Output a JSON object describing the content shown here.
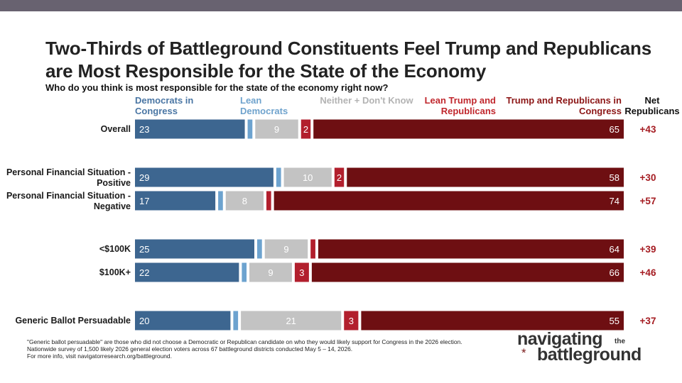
{
  "title": "Two-Thirds of Battleground Constituents Feel Trump and Republicans are Most Responsible for the State of the Economy",
  "subtitle": "Who do you think is most responsible for the state of the economy right now?",
  "colors": {
    "dem": "#3d6690",
    "lean_dem": "#6da3cf",
    "neither": "#c3c3c3",
    "lean_rep": "#b21f2d",
    "rep": "#6e0f12",
    "net": "#a51c22",
    "dem_header": "#4a76a4",
    "lean_dem_header": "#6fa3cd",
    "neither_header": "#b3b3b3",
    "lean_rep_header": "#c0272d",
    "rep_header": "#8c1616"
  },
  "chart_data": {
    "type": "bar",
    "orientation": "horizontal",
    "stacked": true,
    "title": "Two-Thirds of Battleground Constituents Feel Trump and Republicans are Most Responsible for the State of the Economy",
    "subtitle": "Who do you think is most responsible for the state of the economy right now?",
    "xlim": [
      0,
      100
    ],
    "categories": [
      "Overall",
      "Personal Financial Situation - Positive",
      "Personal Financial Situation - Negative",
      "<$100K",
      "$100K+",
      "Generic Ballot Persuadable"
    ],
    "category_lines": [
      [
        "Overall"
      ],
      [
        "Personal Financial Situation -",
        "Positive"
      ],
      [
        "Personal Financial Situation -",
        "Negative"
      ],
      [
        "<$100K"
      ],
      [
        "$100K+"
      ],
      [
        "Generic Ballot Persuadable"
      ]
    ],
    "series": [
      {
        "name": "Democrats in Congress",
        "values": [
          23,
          29,
          17,
          25,
          22,
          20
        ],
        "labels": [
          "23",
          "29",
          "17",
          "25",
          "22",
          "20"
        ]
      },
      {
        "name": "Lean Democrats",
        "values": [
          1,
          1,
          1,
          1,
          1,
          1
        ],
        "labels": [
          "",
          "",
          "",
          "",
          "",
          ""
        ]
      },
      {
        "name": "Neither + Don't Know",
        "values": [
          9,
          10,
          8,
          9,
          9,
          21
        ],
        "labels": [
          "9",
          "10",
          "8",
          "9",
          "9",
          "21"
        ]
      },
      {
        "name": "Lean Trump and Republicans",
        "values": [
          2,
          2,
          1,
          1,
          3,
          3
        ],
        "labels": [
          "2",
          "2",
          "",
          "",
          "3",
          "3"
        ]
      },
      {
        "name": "Trump and Republicans in Congress",
        "values": [
          65,
          58,
          74,
          64,
          66,
          55
        ],
        "labels": [
          "65",
          "58",
          "74",
          "64",
          "66",
          "55"
        ]
      }
    ],
    "net_header": "Net Republicans",
    "net": [
      "+43",
      "+30",
      "+57",
      "+39",
      "+46",
      "+37"
    ]
  },
  "headers": {
    "dem": "Democrats in Congress",
    "lean_dem": "Lean Democrats",
    "neither": "Neither + Don't Know",
    "lean_rep": "Lean Trump and Republicans",
    "rep": "Trump and Republicans in Congress",
    "net": "Net Republicans"
  },
  "footnote": {
    "line1": "\"Generic ballot persuadable\" are those who did not choose a Democratic or Republican candidate on who they would likely support for Congress in the 2026 election.",
    "line2": "Nationwide survey of 1,500 likely 2026 general election voters across 67 battleground districts conducted May 5 – 14, 2026.",
    "line3": "For more info, visit navigatorresearch.org/battleground."
  },
  "logo": {
    "word1": "navigating",
    "word2": "the",
    "word3": "battleground"
  }
}
